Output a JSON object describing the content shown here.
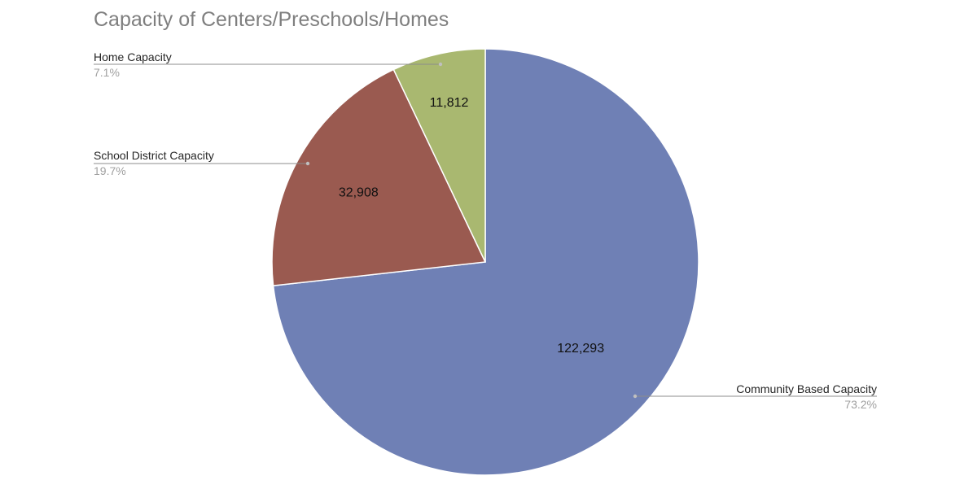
{
  "chart_data": {
    "type": "pie",
    "title": "Capacity of Centers/Preschools/Homes",
    "series": [
      {
        "values": [
          122293,
          32908,
          11812
        ],
        "value_labels": [
          "122,293",
          "32,908",
          "11,812"
        ]
      }
    ],
    "categories": [
      "Community Based Capacity",
      "School District Capacity",
      "Home Capacity"
    ],
    "percent_labels": [
      "73.2%",
      "19.7%",
      "7.1%"
    ],
    "colors": [
      "#6f80b5",
      "#9a5a50",
      "#a9b870"
    ],
    "start_angle_deg": 0,
    "direction": "clockwise",
    "legend": "none"
  }
}
